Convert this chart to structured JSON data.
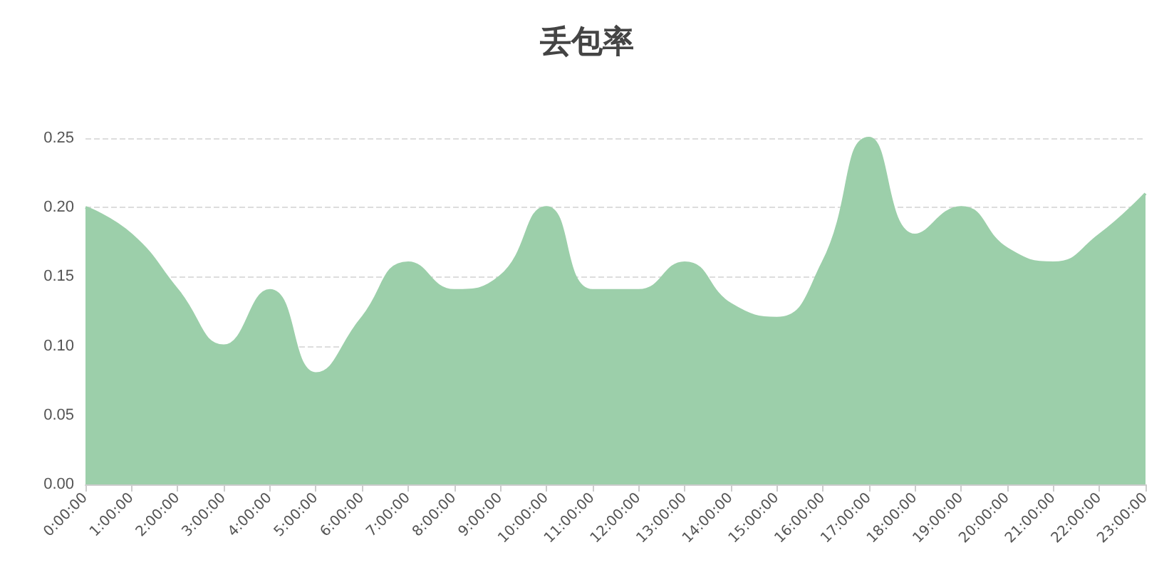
{
  "chart_data": {
    "type": "area",
    "title": "丢包率",
    "categories": [
      "0:00:00",
      "1:00:00",
      "2:00:00",
      "3:00:00",
      "4:00:00",
      "5:00:00",
      "6:00:00",
      "7:00:00",
      "8:00:00",
      "9:00:00",
      "10:00:00",
      "11:00:00",
      "12:00:00",
      "13:00:00",
      "14:00:00",
      "15:00:00",
      "16:00:00",
      "17:00:00",
      "18:00:00",
      "19:00:00",
      "20:00:00",
      "21:00:00",
      "22:00:00",
      "23:00:00"
    ],
    "series": [
      {
        "color": "#9ccfaa",
        "values": [
          0.2,
          0.18,
          0.14,
          0.1,
          0.14,
          0.08,
          0.12,
          0.16,
          0.14,
          0.15,
          0.2,
          0.14,
          0.14,
          0.16,
          0.13,
          0.12,
          0.16,
          0.25,
          0.18,
          0.2,
          0.17,
          0.16,
          0.18,
          0.21
        ]
      }
    ],
    "ylim": [
      0,
      0.25
    ],
    "yticks": [
      {
        "value": 0,
        "label": "0.00"
      },
      0.05,
      {
        "value": 0.1,
        "label": "0.10"
      },
      0.15,
      {
        "value": 0.2,
        "label": "0.20"
      },
      0.25
    ],
    "grid": "y",
    "marker": "none"
  }
}
